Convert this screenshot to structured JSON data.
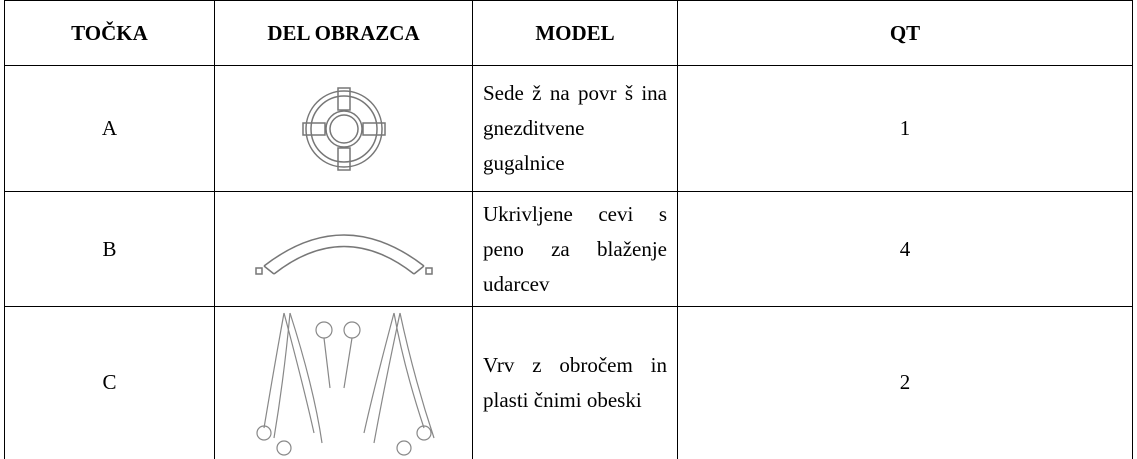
{
  "table": {
    "header": [
      "TOČKA",
      "DEL OBRAZCA",
      "MODEL",
      "QT"
    ],
    "rows": [
      {
        "item": "A",
        "model": "Sede ž na  povr š ina gnezditvene gugalnice",
        "qt": "1"
      },
      {
        "item": "B",
        "model": "Ukrivljene cevi s peno za blaženje udarcev",
        "qt": "4"
      },
      {
        "item": "C",
        "model": "Vrv z obročem in plasti čnimi obeski",
        "qt": "2"
      }
    ]
  }
}
